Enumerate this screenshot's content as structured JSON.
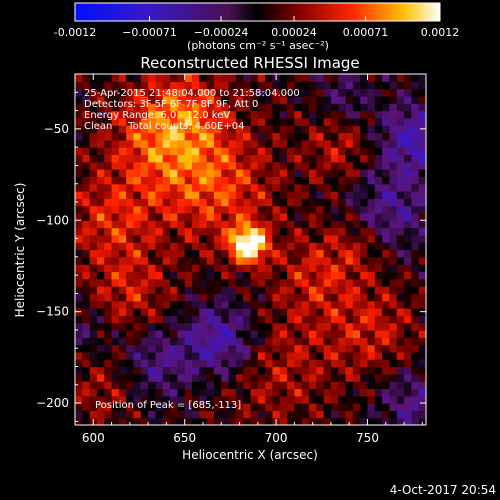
{
  "chart_data": {
    "type": "heatmap",
    "title": "Reconstructed RHESSI Image",
    "xlabel": "Heliocentric X (arcsec)",
    "ylabel": "Heliocentric Y (arcsec)",
    "xlim": [
      590,
      782
    ],
    "ylim": [
      -212,
      -20
    ],
    "x_ticks": [
      600,
      650,
      700,
      750
    ],
    "y_ticks": [
      -50,
      -100,
      -150,
      -200
    ],
    "colorbar": {
      "range": [
        -0.0012,
        0.0012
      ],
      "tick_values": [
        -0.0012,
        -0.00071,
        -0.00024,
        0.00024,
        0.00071,
        0.0012
      ],
      "tick_labels": [
        "-0.0012",
        "−0.00071",
        "−0.00024",
        "0.00024",
        "0.00071",
        "0.0012"
      ],
      "unit_label": "(photons cm⁻² s⁻¹ asec⁻²)"
    },
    "annotations": [
      "25-Apr-2015 21:48:04.000 to 21:58:04.000",
      "Detectors: 3F 5F 6F 7F 8F 9F, Att 0",
      "Energy Range: 6.0 - 12.0 keV",
      "Clean     Total counts: 4.60E+04"
    ],
    "peak_label": "Position of Peak = [685,-113]",
    "peak": {
      "x": 685,
      "y": -113,
      "value": 0.0012
    },
    "features": [
      {
        "x": 685,
        "y": -113,
        "sigma": 7,
        "value": 0.00125
      },
      {
        "x": 668,
        "y": -82,
        "sigma": 22,
        "value": 0.0005
      },
      {
        "x": 635,
        "y": -58,
        "sigma": 20,
        "value": 0.00045
      },
      {
        "x": 610,
        "y": -100,
        "sigma": 18,
        "value": 0.0004
      },
      {
        "x": 620,
        "y": -140,
        "sigma": 16,
        "value": 0.00035
      },
      {
        "x": 722,
        "y": -130,
        "sigma": 16,
        "value": 0.00035
      },
      {
        "x": 752,
        "y": -160,
        "sigma": 18,
        "value": 0.00035
      },
      {
        "x": 700,
        "y": -180,
        "sigma": 22,
        "value": 0.0003
      },
      {
        "x": 650,
        "y": -40,
        "sigma": 18,
        "value": 0.0004
      },
      {
        "x": 605,
        "y": -192,
        "sigma": 14,
        "value": 0.00025
      },
      {
        "x": 735,
        "y": -60,
        "sigma": 14,
        "value": 0.0003
      },
      {
        "x": 745,
        "y": -112,
        "sigma": 12,
        "value": 0.00028
      },
      {
        "x": 775,
        "y": -55,
        "sigma": 14,
        "value": -0.0006
      },
      {
        "x": 762,
        "y": -95,
        "sigma": 16,
        "value": -0.00045
      },
      {
        "x": 670,
        "y": -165,
        "sigma": 14,
        "value": -0.00065
      },
      {
        "x": 635,
        "y": -178,
        "sigma": 14,
        "value": -0.0004
      },
      {
        "x": 775,
        "y": -200,
        "sigma": 14,
        "value": -0.0004
      },
      {
        "x": 738,
        "y": -32,
        "sigma": 10,
        "value": -0.0003
      },
      {
        "x": 596,
        "y": -160,
        "sigma": 10,
        "value": -0.00025
      }
    ]
  },
  "footer": {
    "timestamp": "4-Oct-2017 20:54"
  }
}
